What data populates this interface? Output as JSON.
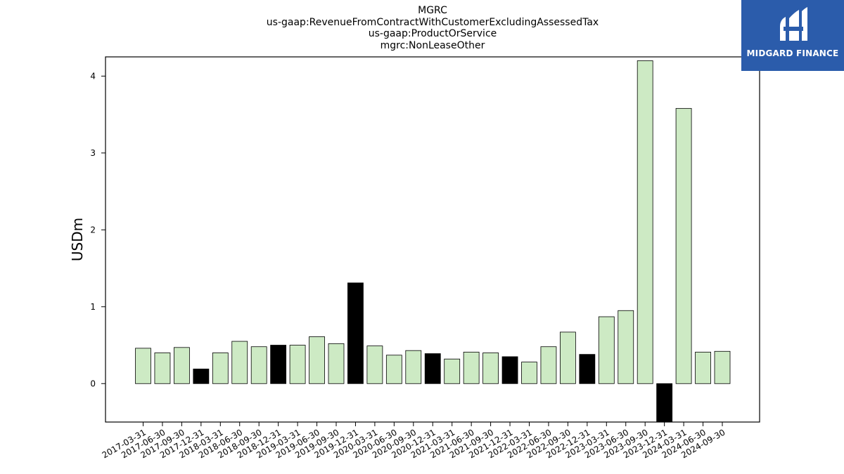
{
  "title_lines": [
    "MGRC",
    "us-gaap:RevenueFromContractWithCustomerExcludingAssessedTax",
    "us-gaap:ProductOrService",
    "mgrc:NonLeaseOther"
  ],
  "logo": {
    "text": "MIDGARD FINANCE",
    "bg_color": "#2b5cab"
  },
  "chart_data": {
    "type": "bar",
    "ylabel": "USDm",
    "xlabel": "",
    "ylim": [
      -0.5,
      4.25
    ],
    "yticks": [
      0,
      1,
      2,
      3,
      4
    ],
    "grid": false,
    "colors": {
      "default": "#cdeac4",
      "highlight": "#000000",
      "edge": "#000000"
    },
    "categories": [
      "2017-03-31",
      "2017-06-30",
      "2017-09-30",
      "2017-12-31",
      "2018-03-31",
      "2018-06-30",
      "2018-09-30",
      "2018-12-31",
      "2019-03-31",
      "2019-06-30",
      "2019-09-30",
      "2019-12-31",
      "2020-03-31",
      "2020-06-30",
      "2020-09-30",
      "2020-12-31",
      "2021-03-31",
      "2021-06-30",
      "2021-09-30",
      "2021-12-31",
      "2022-03-31",
      "2022-06-30",
      "2022-09-30",
      "2022-12-31",
      "2023-03-31",
      "2023-06-30",
      "2023-09-30",
      "2023-12-31",
      "2024-03-31",
      "2024-06-30",
      "2024-09-30"
    ],
    "values": [
      0.46,
      0.4,
      0.47,
      0.19,
      0.4,
      0.55,
      0.48,
      0.5,
      0.5,
      0.61,
      0.52,
      1.31,
      0.49,
      0.37,
      0.43,
      0.39,
      0.32,
      0.41,
      0.4,
      0.35,
      0.28,
      0.48,
      0.67,
      0.38,
      0.87,
      0.95,
      4.2,
      -0.58,
      3.58,
      0.41,
      0.42
    ],
    "highlight": [
      false,
      false,
      false,
      true,
      false,
      false,
      false,
      true,
      false,
      false,
      false,
      true,
      false,
      false,
      false,
      true,
      false,
      false,
      false,
      true,
      false,
      false,
      false,
      true,
      false,
      false,
      false,
      true,
      false,
      false,
      false
    ]
  }
}
